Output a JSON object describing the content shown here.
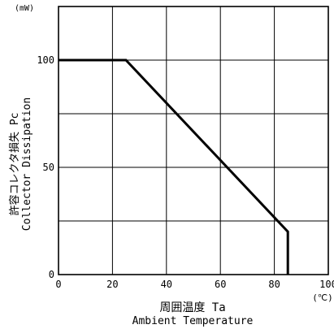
{
  "chart_data": {
    "type": "line",
    "ylabel_jp": "許容コレクタ損失 Pc",
    "ylabel_en": "Collector Dissipation",
    "xlabel_jp": "周囲温度 Ta",
    "xlabel_en": "Ambient Temperature",
    "y_unit": "(mW)",
    "x_unit": "(℃)",
    "xlim": [
      0,
      100
    ],
    "ylim": [
      0,
      125
    ],
    "x_ticks": [
      0,
      20,
      40,
      60,
      80,
      100
    ],
    "y_ticks": [
      0,
      50,
      100
    ],
    "x_grid": [
      0,
      20,
      40,
      60,
      80,
      100
    ],
    "y_grid": [
      0,
      25,
      50,
      75,
      100,
      125
    ],
    "grid": true,
    "series": [
      {
        "x": [
          0,
          25,
          85,
          85
        ],
        "y": [
          100,
          100,
          20,
          0
        ]
      }
    ]
  }
}
